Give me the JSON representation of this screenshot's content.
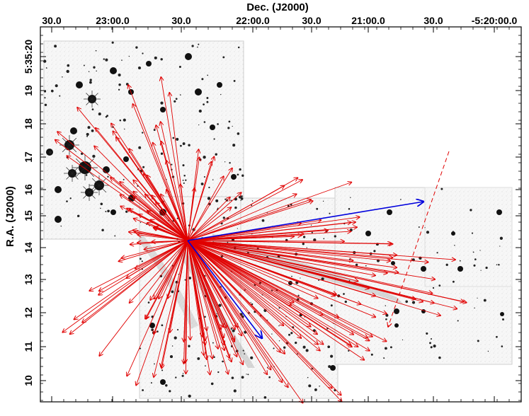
{
  "chart_data": {
    "type": "vector-field",
    "title": "",
    "xlabel": "Dec. (J2000)",
    "ylabel": "R.A. (J2000)",
    "x_ticks": [
      "30.0",
      "23:00.0",
      "30.0",
      "22:00.0",
      "30.0",
      "21:00.0",
      "30.0",
      "-5:20:00.0"
    ],
    "y_ticks": [
      "5:35:20",
      "19",
      "18",
      "17",
      "16",
      "15",
      "14",
      "13",
      "12",
      "11",
      "10"
    ],
    "background": "grayscale mosaic image (inverted) of stars and nebulosity",
    "origin_label": "",
    "series": [
      {
        "color": "#e00000",
        "style": "solid",
        "count": "many"
      },
      {
        "color": "#0000dd",
        "style": "solid",
        "count": 2
      },
      {
        "color": "#e00000",
        "style": "dashed",
        "count": 1
      }
    ],
    "colors": {
      "red_vectors": "#e00000",
      "blue_vectors": "#0000dd",
      "frame": "#000000"
    }
  }
}
